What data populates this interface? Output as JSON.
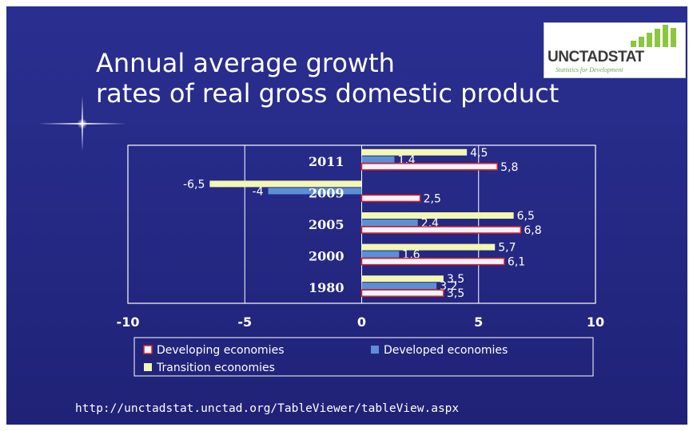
{
  "title_lines": [
    "Annual average growth",
    "rates of real gross domestic product"
  ],
  "logo": {
    "text": "UNCTADSTAT",
    "tagline": "Statistics for Development"
  },
  "source_url": "http://unctadstat.unctad.org/TableViewer/tableView.aspx",
  "colors": {
    "developing": "#f0f4ff",
    "developing_border": "#e02020",
    "developed": "#5b8fd6",
    "transition": "#f4f7b0",
    "grid": "#ffffff",
    "text": "#ffffff"
  },
  "chart_data": {
    "type": "bar",
    "orientation": "horizontal",
    "title": "",
    "xlabel": "",
    "ylabel": "",
    "categories": [
      "2011",
      "2009",
      "2005",
      "2000",
      "1980"
    ],
    "series": [
      {
        "name": "Developing economies",
        "values": [
          5.8,
          2.5,
          6.8,
          6.1,
          3.5
        ],
        "labels": [
          "5,8",
          "2,5",
          "6,8",
          "6,1",
          "3,5"
        ]
      },
      {
        "name": "Developed economies",
        "values": [
          1.4,
          -4,
          2.4,
          1.6,
          3.2
        ],
        "labels": [
          "1,4",
          "-4",
          "2,4",
          "1,6",
          "3,2"
        ]
      },
      {
        "name": "Transition economies",
        "values": [
          4.5,
          -6.5,
          6.5,
          5.7,
          3.5
        ],
        "labels": [
          "4,5",
          "-6,5",
          "6,5",
          "5,7",
          "3,5"
        ]
      }
    ],
    "xlim": [
      -10,
      10
    ],
    "xticks": [
      "-10",
      "-5",
      "0",
      "5",
      "10"
    ],
    "grid": true,
    "legend_position": "bottom"
  }
}
